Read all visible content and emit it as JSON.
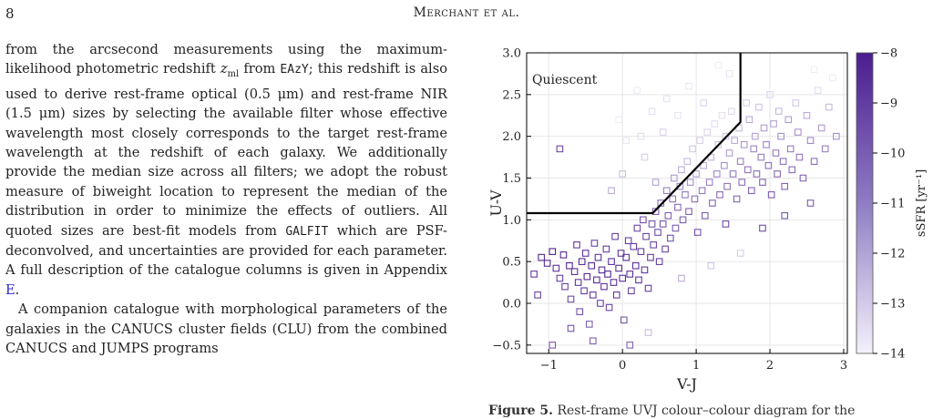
{
  "header": {
    "page_number": "8",
    "running_head": "Merchant et al."
  },
  "body_text": {
    "p1": {
      "a": "from the arcsecond measurements using the maximum-likelihood photometric redshift ",
      "z": "z",
      "zsub": "ml",
      "b": " from ",
      "code1": "EAzY",
      "c": "; this redshift is also used to derive rest-frame optical (0.5 μm) and rest-frame NIR (1.5 μm) sizes by selecting the available filter whose effective wavelength most closely corresponds to the target rest-frame wavelength at the redshift of each galaxy. We additionally provide the median size across all filters; we adopt the robust measure of biweight location to represent the median of the distribution in order to minimize the effects of outliers. All quoted sizes are best-fit models from ",
      "code2": "GALFIT",
      "d": " which are PSF-deconvolved, and uncertainties are provided for each parameter. A full description of the catalogue columns is given in Appendix ",
      "link": "E",
      "e": "."
    },
    "p2": "A companion catalogue with morphological parameters of the galaxies in the CANUCS cluster fields (CLU) from the combined CANUCS and JUMPS programs"
  },
  "caption": {
    "label": "Figure 5.",
    "text": " Rest-frame UVJ colour–colour diagram for the"
  },
  "chart_data": {
    "type": "scatter",
    "title": "",
    "xlabel": "V-J",
    "ylabel": "U-V",
    "xlim": [
      -1.3,
      3.05
    ],
    "ylim": [
      -0.6,
      3.0
    ],
    "xticks": [
      "−1",
      "0",
      "1",
      "2",
      "3"
    ],
    "yticks": [
      "−0.5",
      "0.0",
      "0.5",
      "1.0",
      "1.5",
      "2.0",
      "2.5",
      "3.0"
    ],
    "grid": true,
    "marker": "open-square",
    "region_label": "Quiescent",
    "quiescent_boundary": [
      [
        -1.3,
        1.08
      ],
      [
        0.41,
        1.08
      ],
      [
        1.6,
        2.17
      ],
      [
        1.6,
        3.0
      ]
    ],
    "colorbar": {
      "label": "sSFR [yr⁻¹]",
      "range": [
        -14,
        -8
      ],
      "ticks": [
        "−8",
        "−9",
        "−10",
        "−11",
        "−12",
        "−13",
        "−14"
      ],
      "color_high": "#4b1d8f",
      "color_low": "#f4f1fb"
    },
    "points": [
      [
        -1.1,
        0.55,
        -8.3
      ],
      [
        -1.02,
        0.48,
        -8.5
      ],
      [
        -0.95,
        0.62,
        -8.2
      ],
      [
        -0.9,
        0.42,
        -8.6
      ],
      [
        -0.85,
        0.3,
        -8.9
      ],
      [
        -0.8,
        0.58,
        -8.4
      ],
      [
        -0.78,
        0.2,
        -9.0
      ],
      [
        -0.72,
        0.45,
        -8.3
      ],
      [
        -0.7,
        0.05,
        -9.3
      ],
      [
        -0.65,
        0.38,
        -8.5
      ],
      [
        -0.62,
        0.7,
        -8.8
      ],
      [
        -0.6,
        0.25,
        -8.7
      ],
      [
        -0.58,
        -0.1,
        -9.4
      ],
      [
        -0.55,
        0.5,
        -8.4
      ],
      [
        -0.52,
        0.15,
        -8.9
      ],
      [
        -0.5,
        0.6,
        -8.6
      ],
      [
        -0.48,
        0.32,
        -8.3
      ],
      [
        -0.45,
        -0.25,
        -9.8
      ],
      [
        -0.42,
        0.45,
        -8.5
      ],
      [
        -0.4,
        0.1,
        -8.8
      ],
      [
        -0.38,
        0.72,
        -9.1
      ],
      [
        -0.35,
        0.28,
        -8.4
      ],
      [
        -0.33,
        0.55,
        -8.7
      ],
      [
        -0.3,
        0.0,
        -9.0
      ],
      [
        -0.28,
        0.4,
        -8.5
      ],
      [
        -0.25,
        0.2,
        -8.6
      ],
      [
        -0.22,
        0.65,
        -8.9
      ],
      [
        -0.2,
        0.35,
        -8.3
      ],
      [
        -0.18,
        -0.05,
        -9.2
      ],
      [
        -0.15,
        0.5,
        -8.6
      ],
      [
        -0.12,
        0.25,
        -8.5
      ],
      [
        -0.1,
        0.8,
        -9.0
      ],
      [
        -0.08,
        0.1,
        -8.8
      ],
      [
        -0.05,
        0.42,
        -8.4
      ],
      [
        -0.02,
        0.6,
        -8.7
      ],
      [
        0.0,
        0.3,
        -8.5
      ],
      [
        0.02,
        -0.2,
        -9.6
      ],
      [
        0.05,
        0.55,
        -8.6
      ],
      [
        0.08,
        0.75,
        -9.0
      ],
      [
        0.1,
        0.35,
        -8.5
      ],
      [
        0.12,
        0.15,
        -8.9
      ],
      [
        0.15,
        0.68,
        -8.8
      ],
      [
        0.18,
        0.45,
        -8.6
      ],
      [
        0.2,
        0.9,
        -9.2
      ],
      [
        0.22,
        0.28,
        -8.7
      ],
      [
        0.25,
        0.62,
        -8.9
      ],
      [
        0.28,
        1.0,
        -9.4
      ],
      [
        0.3,
        0.4,
        -8.8
      ],
      [
        0.32,
        0.8,
        -9.1
      ],
      [
        0.35,
        0.18,
        -9.0
      ],
      [
        0.38,
        0.55,
        -8.9
      ],
      [
        0.4,
        0.95,
        -9.5
      ],
      [
        0.42,
        0.7,
        -9.2
      ],
      [
        0.45,
        1.1,
        -9.8
      ],
      [
        0.48,
        0.85,
        -9.3
      ],
      [
        0.5,
        0.5,
        -9.0
      ],
      [
        0.52,
        1.2,
        -10.2
      ],
      [
        0.55,
        0.95,
        -9.6
      ],
      [
        0.58,
        0.65,
        -9.1
      ],
      [
        0.6,
        1.35,
        -10.8
      ],
      [
        0.62,
        1.05,
        -9.9
      ],
      [
        0.65,
        0.78,
        -9.4
      ],
      [
        0.68,
        1.25,
        -10.5
      ],
      [
        0.7,
        1.5,
        -11.5
      ],
      [
        0.72,
        0.9,
        -9.7
      ],
      [
        0.75,
        1.15,
        -10.1
      ],
      [
        0.78,
        1.4,
        -11.0
      ],
      [
        0.8,
        1.6,
        -12.0
      ],
      [
        0.82,
        1.0,
        -9.8
      ],
      [
        0.85,
        1.3,
        -10.6
      ],
      [
        0.88,
        1.7,
        -12.4
      ],
      [
        0.9,
        1.1,
        -9.9
      ],
      [
        0.92,
        1.45,
        -11.2
      ],
      [
        0.95,
        1.85,
        -12.8
      ],
      [
        0.98,
        1.25,
        -10.3
      ],
      [
        1.0,
        1.55,
        -11.6
      ],
      [
        1.02,
        0.85,
        -9.5
      ],
      [
        1.05,
        1.95,
        -13.0
      ],
      [
        1.08,
        1.35,
        -10.5
      ],
      [
        1.1,
        1.65,
        -12.0
      ],
      [
        1.12,
        1.05,
        -9.8
      ],
      [
        1.15,
        2.05,
        -13.2
      ],
      [
        1.18,
        1.45,
        -10.8
      ],
      [
        1.2,
        1.75,
        -12.3
      ],
      [
        1.22,
        1.2,
        -10.0
      ],
      [
        1.25,
        2.15,
        -13.4
      ],
      [
        1.28,
        1.55,
        -11.0
      ],
      [
        1.3,
        1.9,
        -12.6
      ],
      [
        1.32,
        1.3,
        -10.2
      ],
      [
        1.35,
        2.25,
        -13.5
      ],
      [
        1.38,
        1.65,
        -11.2
      ],
      [
        1.4,
        2.0,
        -12.8
      ],
      [
        1.42,
        1.4,
        -10.4
      ],
      [
        1.45,
        1.8,
        -11.6
      ],
      [
        1.48,
        2.3,
        -13.3
      ],
      [
        1.5,
        1.55,
        -10.6
      ],
      [
        1.52,
        1.95,
        -12.0
      ],
      [
        1.55,
        1.25,
        -10.0
      ],
      [
        1.58,
        2.1,
        -12.5
      ],
      [
        1.6,
        1.7,
        -10.8
      ],
      [
        1.62,
        1.45,
        -10.2
      ],
      [
        1.65,
        1.9,
        -11.4
      ],
      [
        1.68,
        2.4,
        -13.0
      ],
      [
        1.7,
        1.6,
        -10.5
      ],
      [
        1.72,
        2.2,
        -12.0
      ],
      [
        1.75,
        1.35,
        -9.9
      ],
      [
        1.78,
        1.85,
        -11.0
      ],
      [
        1.8,
        2.0,
        -11.8
      ],
      [
        1.82,
        1.55,
        -10.2
      ],
      [
        1.85,
        2.35,
        -12.6
      ],
      [
        1.88,
        1.75,
        -10.7
      ],
      [
        1.9,
        1.45,
        -10.0
      ],
      [
        1.92,
        2.1,
        -11.6
      ],
      [
        1.95,
        1.9,
        -11.0
      ],
      [
        1.98,
        1.65,
        -10.4
      ],
      [
        2.0,
        2.5,
        -13.2
      ],
      [
        2.02,
        1.3,
        -9.8
      ],
      [
        2.05,
        2.15,
        -11.8
      ],
      [
        2.08,
        1.8,
        -10.6
      ],
      [
        2.1,
        1.55,
        -10.1
      ],
      [
        2.12,
        2.3,
        -12.4
      ],
      [
        2.15,
        2.0,
        -11.2
      ],
      [
        2.18,
        1.7,
        -10.4
      ],
      [
        2.2,
        1.4,
        -9.9
      ],
      [
        2.25,
        2.2,
        -11.6
      ],
      [
        2.28,
        1.85,
        -10.7
      ],
      [
        2.3,
        1.6,
        -10.2
      ],
      [
        2.35,
        2.4,
        -12.8
      ],
      [
        2.38,
        2.05,
        -11.3
      ],
      [
        2.4,
        1.75,
        -10.5
      ],
      [
        2.45,
        1.5,
        -10.0
      ],
      [
        2.5,
        2.25,
        -12.0
      ],
      [
        2.55,
        1.95,
        -11.0
      ],
      [
        2.6,
        1.7,
        -10.3
      ],
      [
        2.65,
        2.55,
        -13.4
      ],
      [
        2.7,
        2.1,
        -11.5
      ],
      [
        2.75,
        1.85,
        -10.8
      ],
      [
        2.8,
        2.35,
        -12.4
      ],
      [
        2.85,
        2.7,
        -13.8
      ],
      [
        2.9,
        2.0,
        -11.2
      ],
      [
        1.3,
        2.85,
        -13.9
      ],
      [
        1.45,
        2.75,
        -13.6
      ],
      [
        0.6,
        2.45,
        -13.5
      ],
      [
        0.2,
        2.55,
        -13.8
      ],
      [
        0.9,
        2.6,
        -13.7
      ],
      [
        1.1,
        2.4,
        -13.2
      ],
      [
        2.6,
        2.8,
        -13.9
      ],
      [
        -0.85,
        1.85,
        -9.2
      ],
      [
        -0.15,
        1.35,
        -12.0
      ],
      [
        0.0,
        1.55,
        -12.5
      ],
      [
        0.3,
        1.75,
        -13.0
      ],
      [
        0.45,
        1.45,
        -11.8
      ],
      [
        1.9,
        0.9,
        -9.4
      ],
      [
        2.2,
        1.05,
        -9.6
      ],
      [
        2.55,
        1.2,
        -9.8
      ],
      [
        1.4,
        0.95,
        -9.3
      ],
      [
        -0.95,
        -0.5,
        -9.7
      ],
      [
        -0.4,
        -0.45,
        -9.9
      ],
      [
        0.1,
        -0.5,
        -10.0
      ],
      [
        0.35,
        -0.35,
        -12.5
      ],
      [
        -0.7,
        -0.3,
        -9.5
      ],
      [
        1.2,
        0.45,
        -12.8
      ],
      [
        1.6,
        0.6,
        -13.0
      ],
      [
        0.8,
        0.3,
        -12.0
      ],
      [
        -1.2,
        0.35,
        -8.8
      ],
      [
        -1.15,
        0.1,
        -9.1
      ],
      [
        0.55,
        2.05,
        -13.1
      ],
      [
        0.75,
        2.25,
        -13.6
      ],
      [
        0.25,
        2.0,
        -13.4
      ],
      [
        0.05,
        1.95,
        -13.7
      ],
      [
        -0.05,
        2.2,
        -13.9
      ],
      [
        0.4,
        2.3,
        -13.5
      ]
    ]
  }
}
